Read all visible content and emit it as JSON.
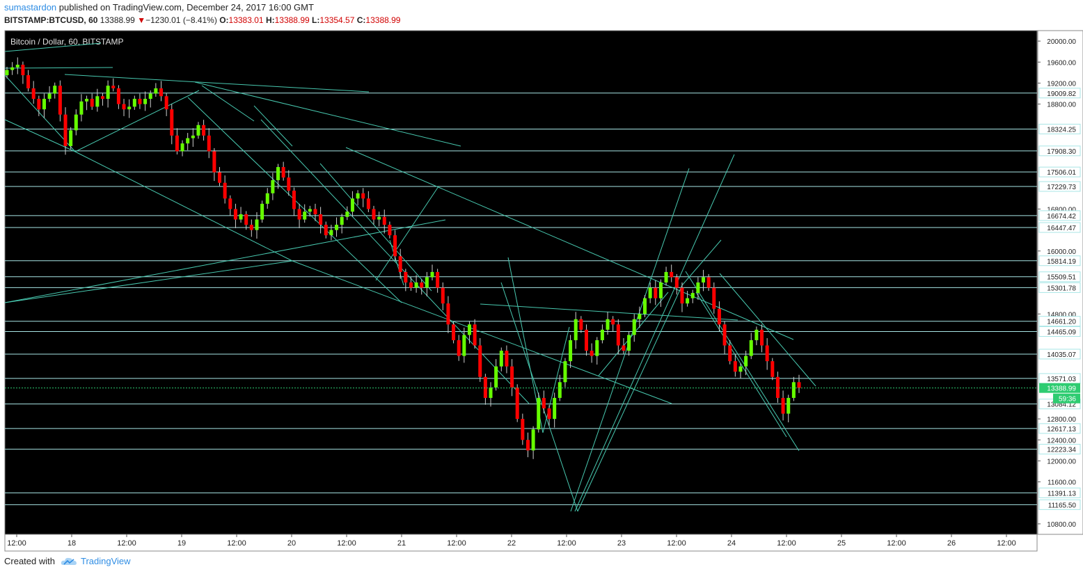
{
  "header": {
    "author": "sumastardon",
    "published_text": "published on TradingView.com, December 24, 2017 16:00 GMT",
    "symbol": "BITSTAMP:BTCUSD, 60",
    "last_price": "13388.99",
    "change": "−1230.01 (−8.41%)",
    "o_label": "O:",
    "o_value": "13383.01",
    "h_label": "H:",
    "h_value": "13388.99",
    "l_label": "L:",
    "l_value": "13354.57",
    "c_label": "C:",
    "c_value": "13388.99"
  },
  "footer": {
    "created_with": "Created with",
    "brand": "TradingView",
    "brand_icon": "tradingview-cloud-icon"
  },
  "colors": {
    "background": "#000000",
    "up_candle": "#66ff00",
    "down_candle": "#ff0000",
    "trendline": "#48c9b0",
    "level_line": "#a8e6e6",
    "current_price": "#2ecc71"
  },
  "chart_data": {
    "type": "candlestick",
    "title": "Bitcoin / Dollar, 60, BITSTAMP",
    "ylim": [
      10600,
      20200
    ],
    "y_ticks": [
      20000.0,
      19600.0,
      19200.0,
      18800.0,
      16800.0,
      16000.0,
      14800.0,
      12800.0,
      12400.0,
      12000.0,
      11600.0,
      10800.0
    ],
    "x_ticks": [
      "12:00",
      "18",
      "12:00",
      "19",
      "12:00",
      "20",
      "12:00",
      "21",
      "12:00",
      "22",
      "12:00",
      "23",
      "12:00",
      "24",
      "12:00",
      "25",
      "12:00",
      "26",
      "12:00"
    ],
    "horizontal_levels": [
      19009.82,
      18324.25,
      17908.3,
      17506.01,
      17229.73,
      16674.42,
      16447.47,
      15814.19,
      15509.51,
      15301.78,
      14661.2,
      14465.09,
      14035.07,
      13571.03,
      13084.12,
      12617.13,
      12223.34,
      11391.13,
      11165.5
    ],
    "current_price": 13388.99,
    "countdown_label": "59:36",
    "candle_closes": [
      19450,
      19500,
      19550,
      19350,
      19100,
      18900,
      18700,
      18900,
      19000,
      19150,
      18600,
      18000,
      18300,
      18600,
      18850,
      18900,
      18750,
      18950,
      18900,
      19150,
      19100,
      18800,
      18700,
      18750,
      18900,
      18800,
      18900,
      19000,
      19100,
      18950,
      18700,
      18200,
      17900,
      18050,
      18150,
      18200,
      18400,
      18200,
      17900,
      17500,
      17300,
      17000,
      16800,
      16600,
      16700,
      16500,
      16400,
      16600,
      16900,
      17100,
      17350,
      17600,
      17400,
      17150,
      16800,
      16600,
      16750,
      16800,
      16700,
      16500,
      16300,
      16400,
      16500,
      16650,
      16750,
      17000,
      17100,
      17000,
      16800,
      16600,
      16650,
      16500,
      16300,
      15900,
      15600,
      15400,
      15300,
      15400,
      15300,
      15500,
      15600,
      15300,
      15000,
      14600,
      14300,
      14000,
      14400,
      14600,
      14200,
      13600,
      13200,
      13400,
      13800,
      14100,
      13800,
      13400,
      12800,
      12400,
      12200,
      12600,
      13200,
      13000,
      12800,
      13200,
      13500,
      13900,
      14300,
      14700,
      14500,
      14100,
      14000,
      14300,
      14500,
      14700,
      14600,
      14200,
      14100,
      14400,
      14700,
      14800,
      15100,
      15300,
      15100,
      15400,
      15600,
      15500,
      15300,
      15000,
      15100,
      15200,
      15400,
      15500,
      15300,
      14900,
      14600,
      14200,
      13900,
      13700,
      13800,
      14000,
      14300,
      14500,
      14200,
      13900,
      13600,
      13200,
      12900,
      13200,
      13500,
      13389
    ]
  }
}
